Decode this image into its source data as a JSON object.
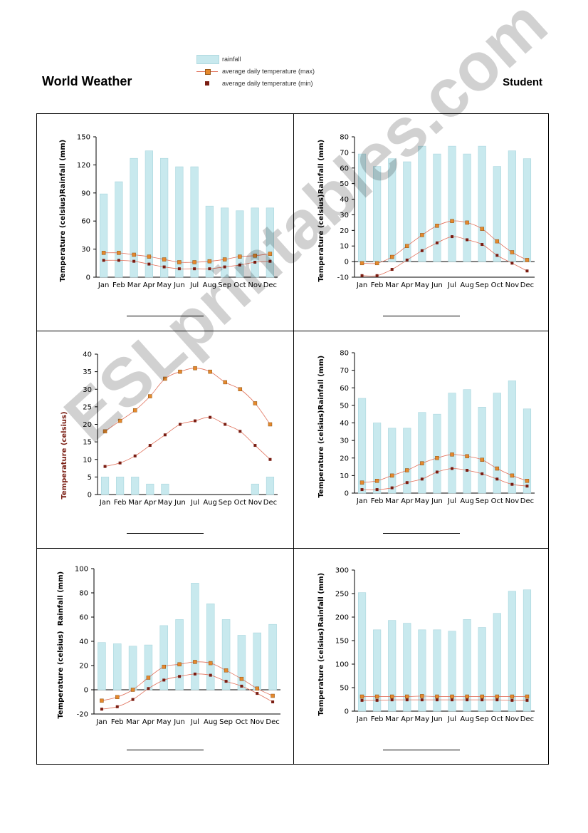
{
  "header": {
    "title": "World Weather",
    "student": "Student"
  },
  "legend": {
    "rainfall": "rainfall",
    "max": "average daily temperature (max)",
    "min": "average daily temperature (min)"
  },
  "watermark": "ESLprintables.com",
  "colors": {
    "bar": "#c8e9ee",
    "barStroke": "#a9d6de",
    "max": "#e5892c",
    "min": "#7a1d12",
    "line": "#e0705a"
  },
  "chart_data": [
    {
      "type": "bar",
      "categories": [
        "Jan",
        "Feb",
        "Mar",
        "Apr",
        "May",
        "Jun",
        "Jul",
        "Aug",
        "Sep",
        "Oct",
        "Nov",
        "Dec"
      ],
      "ylabel_temp": "Temperature (celsius)",
      "ylabel_rain": "Rainfall (mm)",
      "ylim": [
        0,
        150
      ],
      "ticks": [
        0,
        30,
        60,
        90,
        120,
        150
      ],
      "rainfall": [
        89,
        102,
        127,
        135,
        127,
        118,
        118,
        76,
        74,
        71,
        74,
        74
      ],
      "tmax": [
        26,
        26,
        24,
        22,
        19,
        16,
        16,
        17,
        19,
        22,
        23,
        25
      ],
      "tmin": [
        18,
        18,
        17,
        14,
        11,
        9,
        9,
        9,
        11,
        13,
        16,
        17
      ]
    },
    {
      "type": "bar",
      "categories": [
        "Jan",
        "Feb",
        "Mar",
        "Apr",
        "May",
        "Jun",
        "Jul",
        "Aug",
        "Sep",
        "Oct",
        "Nov",
        "Dec"
      ],
      "ylabel_temp": "Temperature (celsius)",
      "ylabel_rain": "Rainfall (mm)",
      "ylim": [
        -10,
        80
      ],
      "ticks": [
        -10,
        0,
        10,
        20,
        30,
        40,
        50,
        60,
        70,
        80
      ],
      "rainfall": [
        69,
        61,
        66,
        64,
        74,
        69,
        74,
        69,
        74,
        61,
        71,
        66
      ],
      "tmax": [
        -1,
        -1,
        3,
        10,
        17,
        23,
        26,
        25,
        21,
        13,
        6,
        1
      ],
      "tmin": [
        -9,
        -9,
        -5,
        1,
        7,
        12,
        16,
        14,
        11,
        4,
        -1,
        -6
      ]
    },
    {
      "type": "bar",
      "categories": [
        "Jan",
        "Feb",
        "Mar",
        "Apr",
        "May",
        "Jun",
        "Jul",
        "Aug",
        "Sep",
        "Oct",
        "Nov",
        "Dec"
      ],
      "ylabel_temp": "Temperature (celsius)",
      "ylabel_rain": "",
      "ylim": [
        0,
        40
      ],
      "ticks": [
        0,
        5,
        10,
        15,
        20,
        25,
        30,
        35,
        40
      ],
      "rainfall": [
        5,
        5,
        5,
        3,
        3,
        0,
        0,
        0,
        0,
        0,
        3,
        5
      ],
      "tmax": [
        18,
        21,
        24,
        28,
        33,
        35,
        36,
        35,
        32,
        30,
        26,
        20
      ],
      "tmin": [
        8,
        9,
        11,
        14,
        17,
        20,
        21,
        22,
        20,
        18,
        14,
        10
      ]
    },
    {
      "type": "bar",
      "categories": [
        "Jan",
        "Feb",
        "Mar",
        "Apr",
        "May",
        "Jun",
        "Jul",
        "Aug",
        "Sep",
        "Oct",
        "Nov",
        "Dec"
      ],
      "ylabel_temp": "Temperature (celsius)",
      "ylabel_rain": "Rainfall (mm)",
      "ylim": [
        0,
        80
      ],
      "ticks": [
        0,
        10,
        20,
        30,
        40,
        50,
        60,
        70,
        80
      ],
      "rainfall": [
        54,
        40,
        37,
        37,
        46,
        45,
        57,
        59,
        49,
        57,
        64,
        48
      ],
      "tmax": [
        6,
        7,
        10,
        13,
        17,
        20,
        22,
        21,
        19,
        14,
        10,
        7
      ],
      "tmin": [
        2,
        2,
        3,
        6,
        8,
        12,
        14,
        13,
        11,
        8,
        5,
        4
      ]
    },
    {
      "type": "bar",
      "categories": [
        "Jan",
        "Feb",
        "Mar",
        "Apr",
        "May",
        "Jun",
        "Jul",
        "Aug",
        "Sep",
        "Oct",
        "Nov",
        "Dec"
      ],
      "ylabel_temp": "Temperature (celsius)",
      "ylabel_rain": "Rainfall (mm)",
      "ylim": [
        -20,
        100
      ],
      "ticks": [
        -20,
        0,
        20,
        40,
        60,
        80,
        100
      ],
      "rainfall": [
        39,
        38,
        36,
        37,
        53,
        58,
        88,
        71,
        58,
        45,
        47,
        54
      ],
      "tmax": [
        -9,
        -6,
        0,
        10,
        19,
        21,
        23,
        22,
        16,
        9,
        1,
        -5
      ],
      "tmin": [
        -16,
        -14,
        -8,
        1,
        8,
        11,
        13,
        12,
        7,
        3,
        -3,
        -10
      ]
    },
    {
      "type": "bar",
      "categories": [
        "Jan",
        "Feb",
        "Mar",
        "Apr",
        "May",
        "Jun",
        "Jul",
        "Aug",
        "Sep",
        "Oct",
        "Nov",
        "Dec"
      ],
      "ylabel_temp": "Temperature (celsius)",
      "ylabel_rain": "Rainfall (mm)",
      "ylim": [
        0,
        300
      ],
      "ticks": [
        0,
        50,
        100,
        150,
        200,
        250,
        300
      ],
      "rainfall": [
        252,
        173,
        193,
        187,
        173,
        173,
        170,
        195,
        178,
        208,
        255,
        258
      ],
      "tmax": [
        31,
        31,
        31,
        31,
        32,
        31,
        31,
        31,
        31,
        31,
        31,
        31
      ],
      "tmin": [
        23,
        23,
        24,
        24,
        24,
        24,
        24,
        24,
        24,
        24,
        23,
        23
      ]
    }
  ]
}
